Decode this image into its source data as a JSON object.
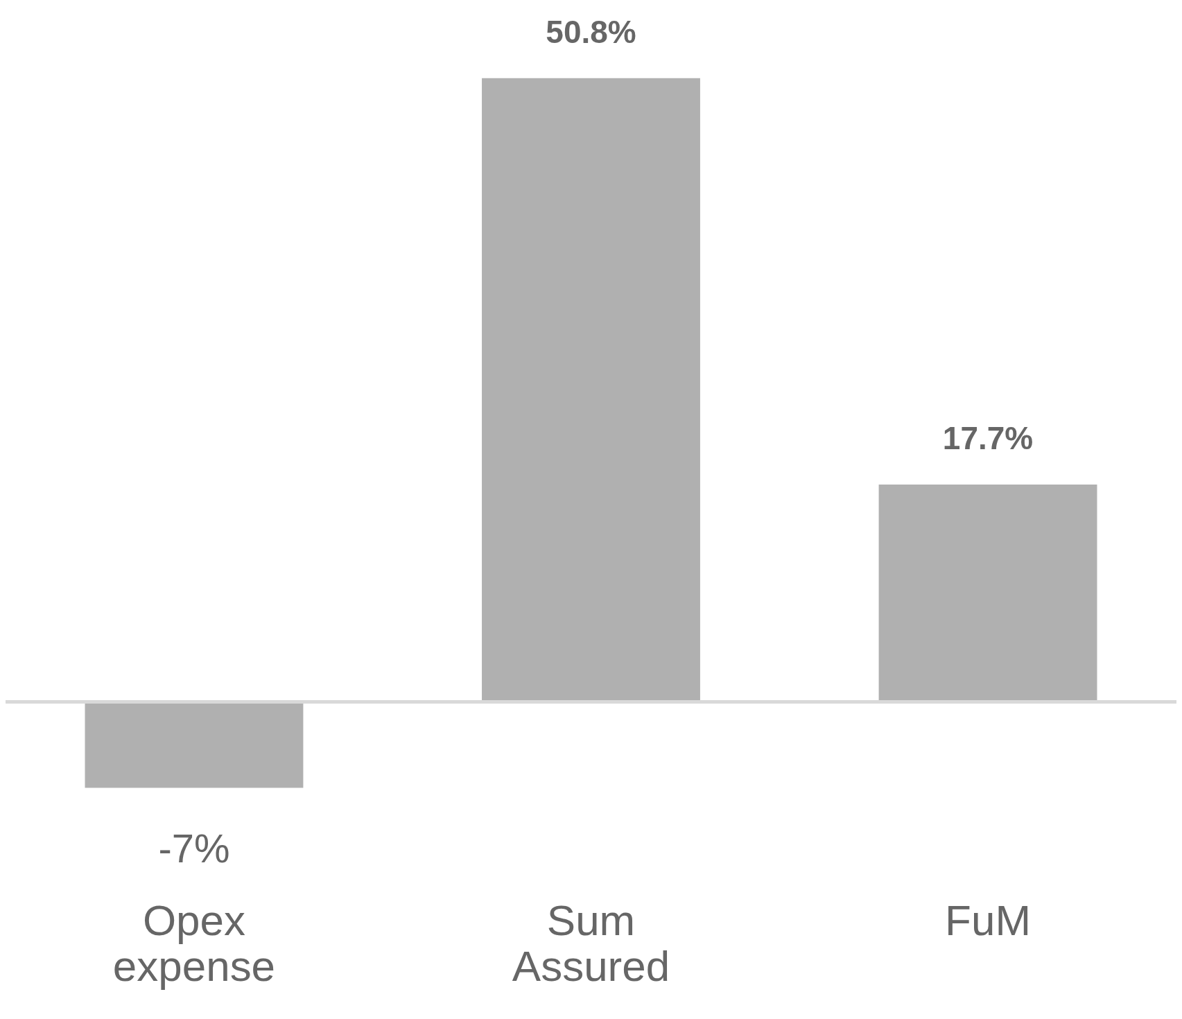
{
  "chart_data": {
    "type": "bar",
    "categories": [
      "Opex expense",
      "Sum Assured",
      "FuM"
    ],
    "values": [
      -7,
      50.8,
      17.7
    ],
    "value_labels": [
      "-7%",
      "50.8%",
      "17.7%"
    ],
    "color": "#b0b0b0"
  }
}
